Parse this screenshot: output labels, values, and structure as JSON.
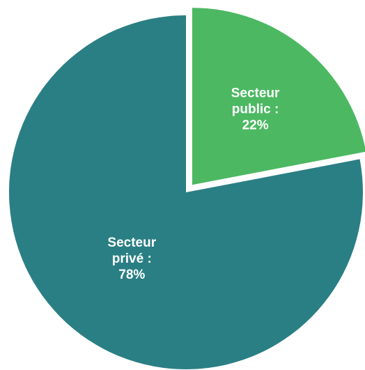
{
  "chart_data": {
    "type": "pie",
    "title": "",
    "slices": [
      {
        "label_lines": [
          "Secteur",
          "public :",
          "22%"
        ],
        "value": 22,
        "color": "#4cb862",
        "exploded": true
      },
      {
        "label_lines": [
          "Secteur",
          "privé :",
          "78%"
        ],
        "value": 78,
        "color": "#2a7f84",
        "exploded": false
      }
    ],
    "start_angle_deg": 0,
    "direction": "clockwise",
    "legend": "none"
  }
}
